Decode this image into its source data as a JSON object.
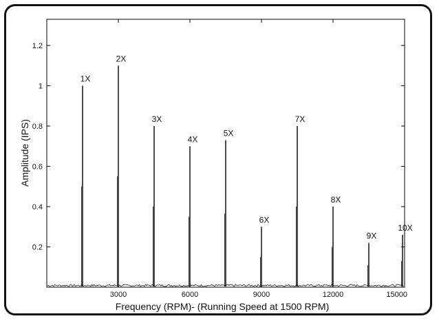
{
  "chart_data": {
    "type": "line",
    "title": "",
    "xlabel": "Frequency (RPM)- (Running Speed at 1500 RPM)",
    "ylabel": "Amplitude (IPS)",
    "xlim": [
      0,
      15000
    ],
    "ylim": [
      0,
      1.33
    ],
    "x_ticks": [
      3000,
      6000,
      9000,
      12000,
      15000
    ],
    "y_ticks": [
      0.2,
      0.4,
      0.6,
      0.8,
      1,
      1.2
    ],
    "grid": false,
    "peaks": [
      {
        "label": "1X",
        "x": 1500,
        "y": 1.0
      },
      {
        "label": "2X",
        "x": 3000,
        "y": 1.1
      },
      {
        "label": "3X",
        "x": 4500,
        "y": 0.8
      },
      {
        "label": "4X",
        "x": 6000,
        "y": 0.7
      },
      {
        "label": "5X",
        "x": 7500,
        "y": 0.73
      },
      {
        "label": "6X",
        "x": 9000,
        "y": 0.3
      },
      {
        "label": "7X",
        "x": 10500,
        "y": 0.8
      },
      {
        "label": "8X",
        "x": 12000,
        "y": 0.4
      },
      {
        "label": "9X",
        "x": 13500,
        "y": 0.22
      },
      {
        "label": "10X",
        "x": 15000,
        "y": 0.26
      }
    ],
    "colors": {
      "line": "#000000",
      "axes": "#000000",
      "background": "#ffffff"
    }
  }
}
